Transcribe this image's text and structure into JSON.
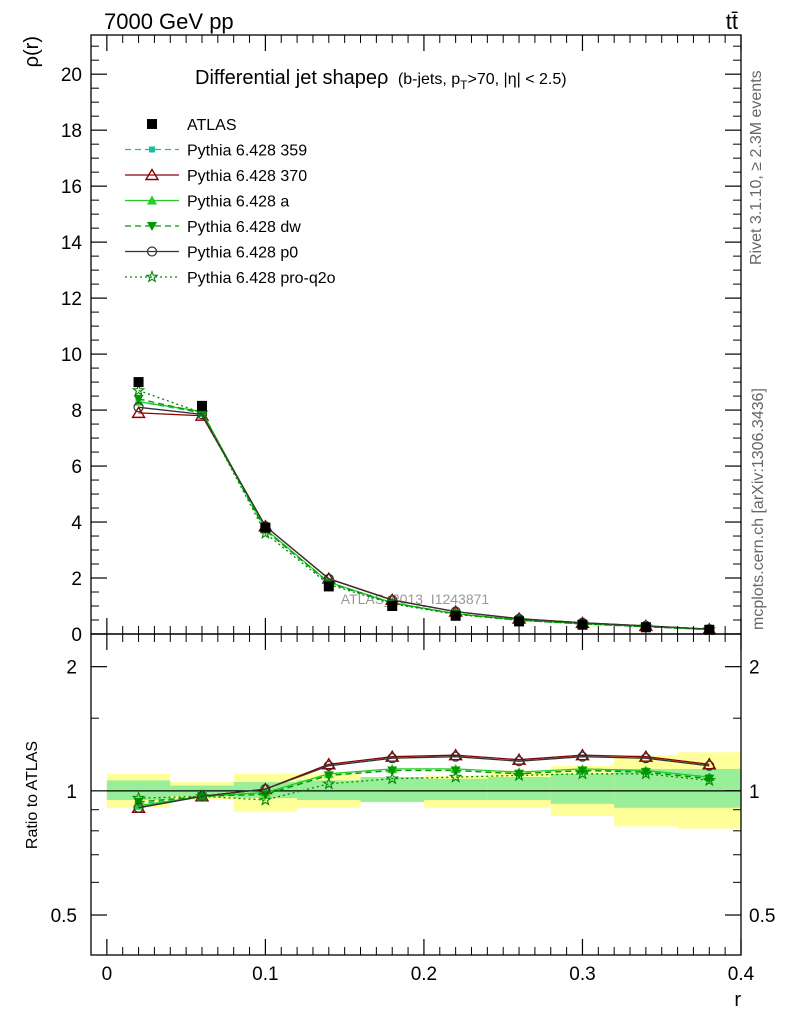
{
  "header": {
    "energy_label": "7000 GeV pp",
    "process_label": "tt̄"
  },
  "side": {
    "rivet_label": "Rivet 3.1.10, ≥ 2.3M events",
    "mcplots_label": "mcplots.cern.ch [arXiv:1306.3436]"
  },
  "chart_data": [
    {
      "type": "line",
      "title": "Differential jet shapeρ",
      "subtitle": "(b-jets, p_T>70, |η| < 2.5)",
      "title_main": "Differential jet shapeρ",
      "title_sub_prefix": "(b-jets, p",
      "title_sub_index": "T",
      "title_sub_suffix": ">70, |η| < 2.5)",
      "ylabel": "ρ(r)",
      "xlabel": "",
      "watermark": "ATLAS_2013_I1243871",
      "xlim": [
        -0.01,
        0.4
      ],
      "ylim": [
        0,
        21.4
      ],
      "yticks": [
        0,
        2,
        4,
        6,
        8,
        10,
        12,
        14,
        16,
        18,
        20
      ],
      "ytick_labels": [
        "0",
        "2",
        "4",
        "6",
        "8",
        "10",
        "12",
        "14",
        "16",
        "18",
        "20"
      ],
      "legend_placement": "top-left",
      "x": [
        0.02,
        0.06,
        0.1,
        0.14,
        0.18,
        0.22,
        0.26,
        0.3,
        0.34,
        0.38
      ],
      "series": [
        {
          "name": "ATLAS",
          "color": "#000000",
          "marker": "square-filled",
          "dash": "none",
          "values": [
            9.0,
            8.15,
            3.8,
            1.7,
            1.0,
            0.65,
            0.45,
            0.33,
            0.24,
            0.15
          ]
        },
        {
          "name": "Pythia 6.428 359",
          "color": "#1abc9c",
          "marker": "square-small",
          "dash": "dashed",
          "values": [
            8.3,
            7.9,
            3.72,
            1.82,
            1.1,
            0.72,
            0.5,
            0.36,
            0.26,
            0.16
          ]
        },
        {
          "name": "Pythia 6.428 370",
          "color": "#8b0000",
          "marker": "triangle-open",
          "dash": "solid",
          "values": [
            7.9,
            7.8,
            3.85,
            1.98,
            1.22,
            0.8,
            0.55,
            0.4,
            0.29,
            0.17
          ]
        },
        {
          "name": "Pythia 6.428 a",
          "color": "#22cc22",
          "marker": "triangle-filled",
          "dash": "solid",
          "values": [
            8.3,
            7.95,
            3.75,
            1.85,
            1.12,
            0.73,
            0.5,
            0.37,
            0.27,
            0.16
          ]
        },
        {
          "name": "Pythia 6.428 dw",
          "color": "#009900",
          "marker": "triangle-down-filled",
          "dash": "dashed",
          "values": [
            8.4,
            7.9,
            3.7,
            1.83,
            1.11,
            0.72,
            0.49,
            0.36,
            0.26,
            0.16
          ]
        },
        {
          "name": "Pythia 6.428 p0",
          "color": "#333333",
          "marker": "circle-open",
          "dash": "solid",
          "values": [
            8.1,
            7.85,
            3.85,
            1.97,
            1.21,
            0.8,
            0.54,
            0.4,
            0.29,
            0.17
          ]
        },
        {
          "name": "Pythia 6.428 pro-q2o",
          "color": "#008800",
          "marker": "star-open",
          "dash": "dotted",
          "values": [
            8.7,
            7.9,
            3.6,
            1.77,
            1.08,
            0.7,
            0.49,
            0.36,
            0.26,
            0.16
          ]
        }
      ]
    },
    {
      "type": "line",
      "title": "",
      "ylabel": "Ratio to ATLAS",
      "xlabel": "r",
      "scale": "log",
      "xlim": [
        -0.01,
        0.4
      ],
      "ylim": [
        0.4,
        2.4
      ],
      "yticks": [
        0.5,
        1,
        2
      ],
      "ytick_labels": [
        "0.5",
        "1",
        "2"
      ],
      "xticks": [
        0,
        0.1,
        0.2,
        0.3,
        0.4
      ],
      "xtick_labels": [
        "0",
        "0.1",
        "0.2",
        "0.3",
        "0.4"
      ],
      "band_bins": [
        [
          0.0,
          0.04
        ],
        [
          0.04,
          0.08
        ],
        [
          0.08,
          0.12
        ],
        [
          0.12,
          0.16
        ],
        [
          0.16,
          0.2
        ],
        [
          0.2,
          0.24
        ],
        [
          0.24,
          0.28
        ],
        [
          0.28,
          0.32
        ],
        [
          0.32,
          0.36
        ],
        [
          0.36,
          0.4
        ]
      ],
      "stat_band": [
        [
          0.95,
          1.06
        ],
        [
          0.97,
          1.03
        ],
        [
          0.96,
          1.05
        ],
        [
          0.95,
          1.06
        ],
        [
          0.94,
          1.08
        ],
        [
          0.95,
          1.07
        ],
        [
          0.95,
          1.08
        ],
        [
          0.93,
          1.1
        ],
        [
          0.91,
          1.13
        ],
        [
          0.91,
          1.13
        ]
      ],
      "total_band": [
        [
          0.91,
          1.1
        ],
        [
          0.95,
          1.05
        ],
        [
          0.89,
          1.1
        ],
        [
          0.91,
          1.1
        ],
        [
          0.96,
          1.05
        ],
        [
          0.91,
          1.09
        ],
        [
          0.91,
          1.12
        ],
        [
          0.87,
          1.15
        ],
        [
          0.82,
          1.22
        ],
        [
          0.81,
          1.24
        ]
      ],
      "x": [
        0.02,
        0.06,
        0.1,
        0.14,
        0.18,
        0.22,
        0.26,
        0.3,
        0.34,
        0.38
      ],
      "series": [
        {
          "name": "Pythia 6.428 359",
          "values": [
            0.93,
            0.97,
            0.99,
            1.09,
            1.12,
            1.12,
            1.1,
            1.12,
            1.12,
            1.08
          ]
        },
        {
          "name": "Pythia 6.428 370",
          "values": [
            0.91,
            0.97,
            1.01,
            1.16,
            1.21,
            1.22,
            1.19,
            1.22,
            1.21,
            1.16
          ]
        },
        {
          "name": "Pythia 6.428 a",
          "values": [
            0.92,
            0.97,
            0.99,
            1.1,
            1.13,
            1.13,
            1.11,
            1.13,
            1.12,
            1.08
          ]
        },
        {
          "name": "Pythia 6.428 dw",
          "values": [
            0.94,
            0.97,
            0.98,
            1.09,
            1.12,
            1.12,
            1.1,
            1.12,
            1.11,
            1.07
          ]
        },
        {
          "name": "Pythia 6.428 p0",
          "values": [
            0.91,
            0.97,
            1.01,
            1.15,
            1.2,
            1.21,
            1.18,
            1.21,
            1.2,
            1.15
          ]
        },
        {
          "name": "Pythia 6.428 pro-q2o",
          "values": [
            0.96,
            0.97,
            0.95,
            1.04,
            1.07,
            1.08,
            1.09,
            1.1,
            1.1,
            1.06
          ]
        }
      ]
    }
  ]
}
